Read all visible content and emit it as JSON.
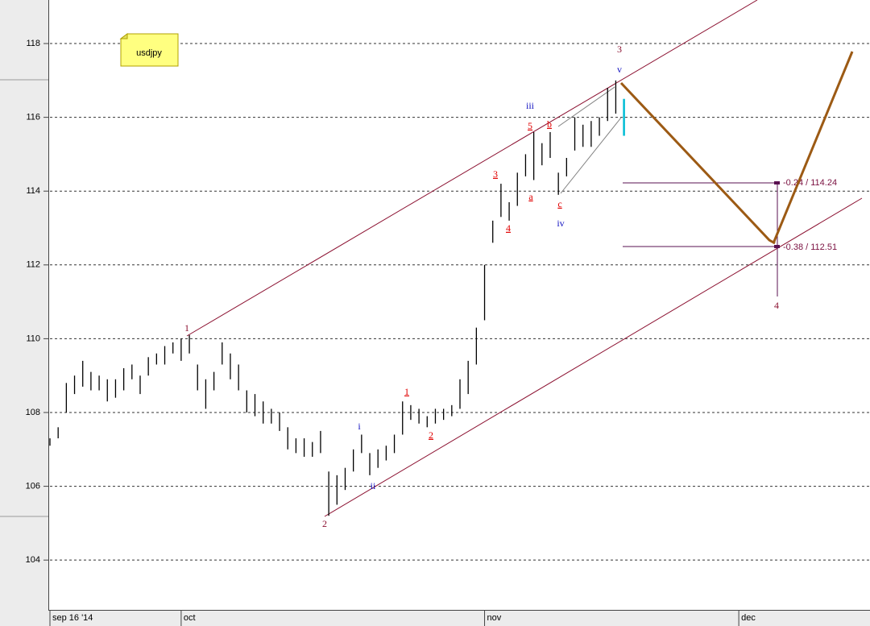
{
  "chart_data": {
    "type": "hl-bars",
    "title": "usdjpy",
    "x": [
      0,
      1,
      2,
      3,
      4,
      5,
      6,
      7,
      8,
      9,
      10,
      11,
      12,
      13,
      14,
      15,
      16,
      17,
      18,
      19,
      20,
      21,
      22,
      23,
      24,
      25,
      26,
      27,
      28,
      29,
      30,
      31,
      32,
      33,
      34,
      35,
      36,
      37,
      38,
      39,
      40,
      41,
      42,
      43,
      44,
      45,
      46,
      47,
      48,
      49,
      50,
      51,
      52,
      53,
      54,
      55,
      56,
      57,
      58,
      59,
      60,
      61,
      62,
      63,
      64,
      65,
      66,
      67,
      68,
      69,
      70
    ],
    "high": [
      107.3,
      107.6,
      108.8,
      109.0,
      109.4,
      109.1,
      109.0,
      108.9,
      108.9,
      109.2,
      109.3,
      109.0,
      109.5,
      109.6,
      109.8,
      109.9,
      110.0,
      110.1,
      109.3,
      108.9,
      109.1,
      109.9,
      109.6,
      109.3,
      108.6,
      108.5,
      108.3,
      108.1,
      108.0,
      107.6,
      107.3,
      107.3,
      107.2,
      107.5,
      106.4,
      106.3,
      106.5,
      107.0,
      107.4,
      106.9,
      107.0,
      107.1,
      107.4,
      108.3,
      108.2,
      108.1,
      107.9,
      108.1,
      108.1,
      108.2,
      108.9,
      109.4,
      110.3,
      112.0,
      113.2,
      114.2,
      113.7,
      114.5,
      115.0,
      115.6,
      115.3,
      115.6,
      114.5,
      114.9,
      116.0,
      115.8,
      115.9,
      116.0,
      116.8,
      117.0,
      116.5
    ],
    "low": [
      107.1,
      107.3,
      108.0,
      108.5,
      108.7,
      108.6,
      108.6,
      108.3,
      108.4,
      108.6,
      108.9,
      108.5,
      109.0,
      109.3,
      109.3,
      109.6,
      109.4,
      109.6,
      108.6,
      108.1,
      108.6,
      109.3,
      108.9,
      108.6,
      108.0,
      107.9,
      107.7,
      107.7,
      107.5,
      107.0,
      106.9,
      106.8,
      106.8,
      106.9,
      105.2,
      105.5,
      105.9,
      106.4,
      106.9,
      106.3,
      106.5,
      106.7,
      106.9,
      107.4,
      107.8,
      107.7,
      107.6,
      107.7,
      107.8,
      107.9,
      108.1,
      108.5,
      109.3,
      110.5,
      112.6,
      113.3,
      113.2,
      113.6,
      114.4,
      114.3,
      114.7,
      114.9,
      113.9,
      114.4,
      115.1,
      115.2,
      115.2,
      115.5,
      115.9,
      116.1,
      115.5
    ],
    "color": "#000000",
    "last_color": "#00bcd4",
    "xlim": [
      0,
      100
    ],
    "ylim": [
      102.65,
      119.18
    ],
    "xticks": [
      {
        "value": 0,
        "label": "sep 16 '14"
      },
      {
        "value": 16,
        "label": "oct"
      },
      {
        "value": 53,
        "label": "nov"
      },
      {
        "value": 84,
        "label": "dec"
      }
    ],
    "yticks": [
      104,
      106,
      108,
      110,
      112,
      114,
      116,
      118
    ],
    "grid": true,
    "annotations": [
      {
        "text": "1",
        "color": "#8b1030"
      },
      {
        "text": "2",
        "color": "#8b1030"
      },
      {
        "text": "3",
        "color": "#8b1030"
      },
      {
        "text": "4",
        "color": "#8b1030"
      },
      {
        "text": "v",
        "color": "#1010c0"
      },
      {
        "text": "iii",
        "color": "#1010c0"
      },
      {
        "text": "iv",
        "color": "#1010c0"
      },
      {
        "text": "i",
        "color": "#1010c0"
      },
      {
        "text": "ii",
        "color": "#1010c0"
      },
      {
        "text": "1",
        "color": "#e00000"
      },
      {
        "text": "2",
        "color": "#e00000"
      },
      {
        "text": "3",
        "color": "#e00000"
      },
      {
        "text": "4",
        "color": "#e00000"
      },
      {
        "text": "5",
        "color": "#e00000"
      },
      {
        "text": "a",
        "color": "#e00000"
      },
      {
        "text": "b",
        "color": "#e00000"
      },
      {
        "text": "c",
        "color": "#e00000"
      }
    ],
    "levels": [
      "-0.24 / 114.24",
      "-0.38 / 112.51"
    ]
  }
}
